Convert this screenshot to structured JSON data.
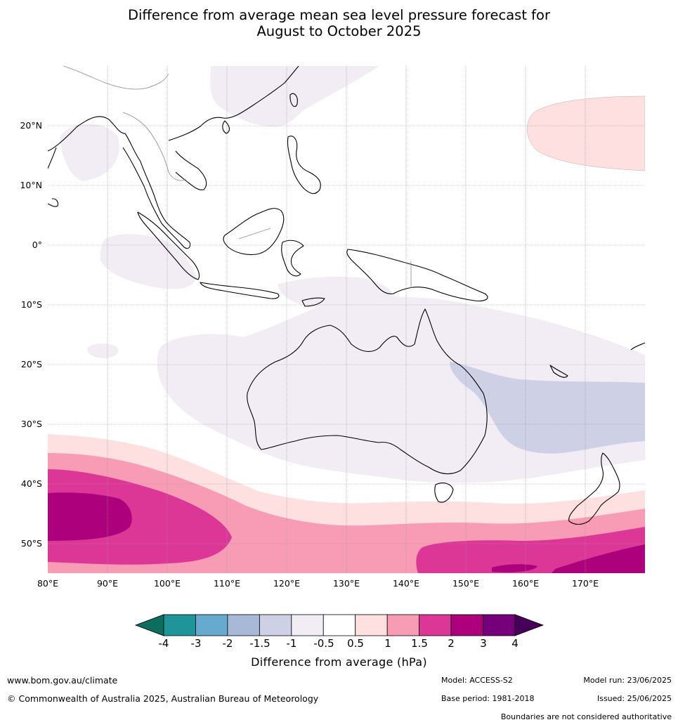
{
  "title": {
    "line1": "Difference from average mean sea level pressure forecast for",
    "line2": "August to October 2025"
  },
  "map": {
    "lat_labels": [
      "20°N",
      "10°N",
      "0°",
      "10°S",
      "20°S",
      "30°S",
      "40°S",
      "50°S"
    ],
    "lon_labels": [
      "80°E",
      "90°E",
      "100°E",
      "110°E",
      "120°E",
      "130°E",
      "140°E",
      "150°E",
      "160°E",
      "170°E"
    ],
    "extent": {
      "lon": [
        80,
        180
      ],
      "lat": [
        -55,
        30
      ]
    }
  },
  "colorbar": {
    "ticks": [
      "-4",
      "-3",
      "-2",
      "-1.5",
      "-1",
      "-0.5",
      "0.5",
      "1",
      "1.5",
      "2",
      "3",
      "4"
    ],
    "label": "Difference from average (hPa)",
    "colors": [
      "#0e6e5e",
      "#1f9499",
      "#66aad0",
      "#a7b9d6",
      "#ced0e6",
      "#f2ecf4",
      "#ffffff",
      "#fde0df",
      "#f89bb4",
      "#dc3696",
      "#ad007d",
      "#76007b",
      "#46005a"
    ]
  },
  "footer": {
    "website": "www.bom.gov.au/climate",
    "copyright": "© Commonwealth of Australia 2025, Australian Bureau of Meteorology",
    "model": "Model: ACCESS-S2",
    "base_period": "Base period: 1981-2018",
    "model_run": "Model run: 23/06/2025",
    "issued": "Issued: 25/06/2025",
    "disclaimer": "Boundaries are not considered authoritative"
  }
}
